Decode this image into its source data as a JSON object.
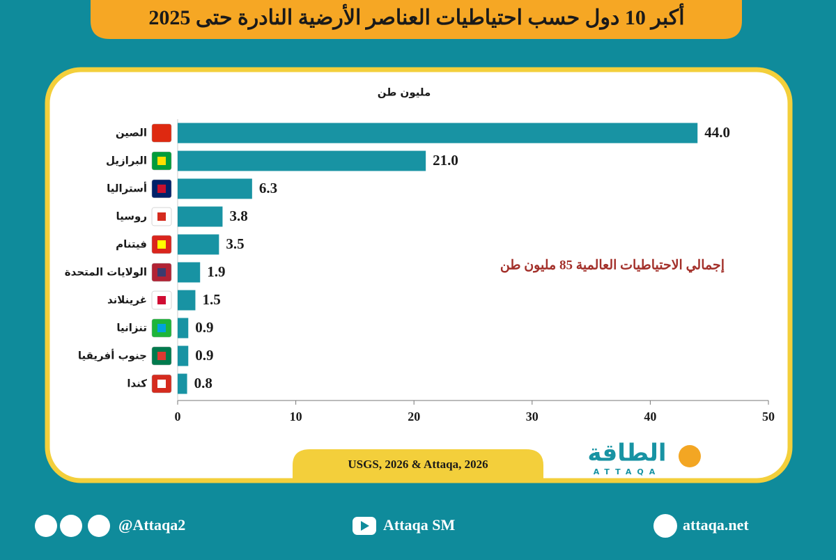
{
  "chart_data": {
    "type": "bar",
    "orientation": "horizontal",
    "title": "أكبر 10 دول حسب احتياطيات العناصر الأرضية النادرة حتى 2025",
    "unit_label": "مليون طن",
    "annotation": "إجمالي الاحتياطيات العالمية 85 مليون طن",
    "source": "USGS, 2026 & Attaqa, 2026",
    "categories": [
      "الصين",
      "البرازيل",
      "أستراليا",
      "روسيا",
      "فيتنام",
      "الولايات المتحدة",
      "غرينلاند",
      "تنزانيا",
      "جنوب أفريقيا",
      "كندا"
    ],
    "values": [
      44.0,
      21.0,
      6.3,
      3.8,
      3.5,
      1.9,
      1.5,
      0.9,
      0.9,
      0.8
    ],
    "value_labels": [
      "44.0",
      "21.0",
      "6.3",
      "3.8",
      "3.5",
      "1.9",
      "1.5",
      "0.9",
      "0.9",
      "0.8"
    ],
    "color": "#1893a3",
    "xlim": [
      0,
      50
    ],
    "xticks": [
      0,
      10,
      20,
      30,
      40,
      50
    ]
  },
  "logo": {
    "text": "الطاقة",
    "subtext": "ATTAQA"
  },
  "footer": {
    "twitter": "@Attaqa2",
    "youtube": "Attaqa SM",
    "website": "attaqa.net"
  }
}
